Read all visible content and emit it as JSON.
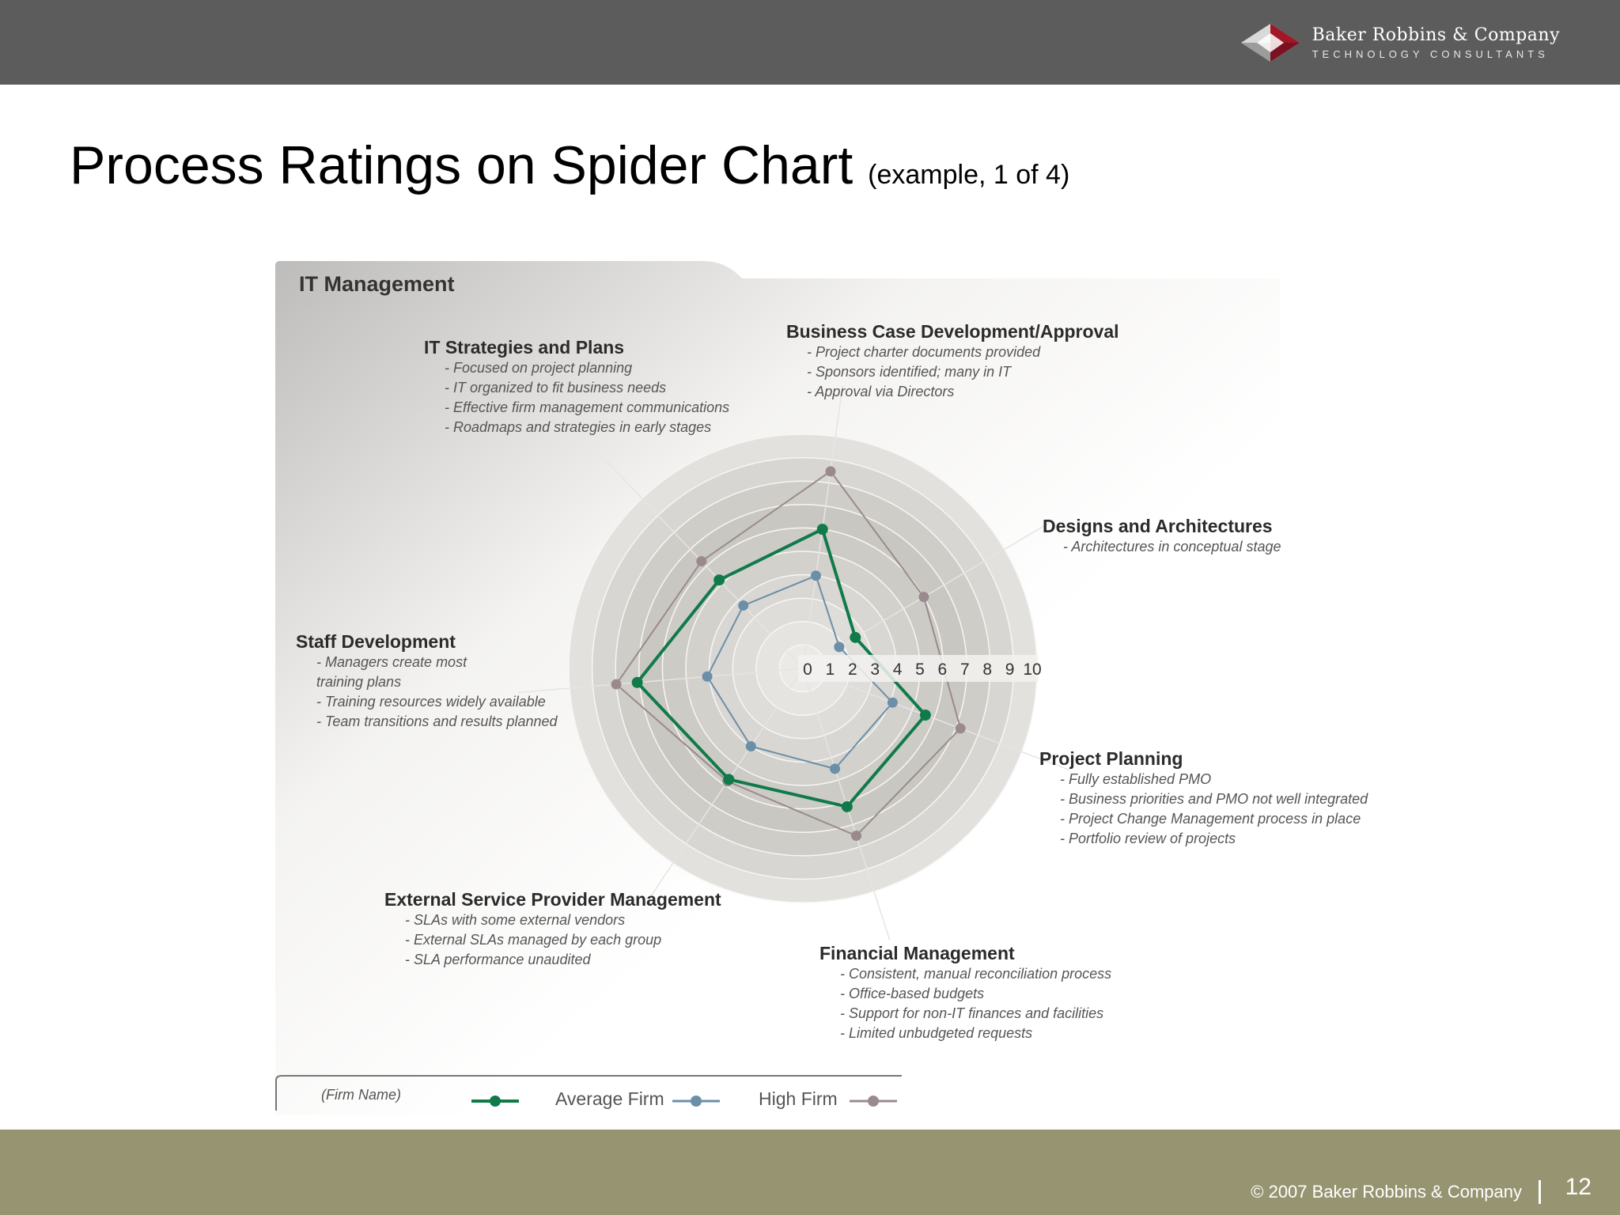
{
  "header": {
    "company_name": "Baker Robbins & Company",
    "company_tagline": "TECHNOLOGY CONSULTANTS"
  },
  "slide": {
    "title": "Process Ratings on Spider Chart",
    "subtitle": "(example, 1 of 4)"
  },
  "chart_data": {
    "type": "radar",
    "title": "IT Management",
    "scale_labels": [
      "0",
      "1",
      "2",
      "3",
      "4",
      "5",
      "6",
      "7",
      "8",
      "9",
      "10"
    ],
    "range": [
      0,
      10
    ],
    "axes": [
      {
        "name": "Business Case Development/Approval",
        "notes": [
          "- Project charter documents provided",
          "- Sponsors identified; many in IT",
          "- Approval via Directors"
        ]
      },
      {
        "name": "Designs and Architectures",
        "notes": [
          "- Architectures in conceptual  stage"
        ]
      },
      {
        "name": "Project Planning",
        "notes": [
          "- Fully established PMO",
          "- Business priorities and PMO not well integrated",
          "- Project Change Management process in place",
          "- Portfolio review of projects"
        ]
      },
      {
        "name": "Financial Management",
        "notes": [
          "- Consistent, manual reconciliation process",
          "- Office-based budgets",
          "- Support for non-IT finances and facilities",
          "- Limited unbudgeted requests"
        ]
      },
      {
        "name": "External Service Provider Management",
        "notes": [
          "- SLAs with some external vendors",
          "- External SLAs managed by each group",
          "- SLA performance unaudited"
        ]
      },
      {
        "name": "Staff Development",
        "notes": [
          "- Managers create most",
          "  training plans",
          "- Training resources widely available",
          "- Team transitions and results planned"
        ]
      },
      {
        "name": "IT Strategies and Plans",
        "notes": [
          "- Focused on project planning",
          "- IT organized to fit business needs",
          "- Effective firm management communications",
          "- Roadmaps and strategies in early stages"
        ]
      }
    ],
    "series": [
      {
        "name": "(Firm Name)",
        "color": "#117a4a",
        "values": [
          6.0,
          2.6,
          5.6,
          6.2,
          5.7,
          7.1,
          5.2
        ]
      },
      {
        "name": "Average Firm",
        "color": "#6b8fa8",
        "values": [
          4.0,
          1.8,
          4.1,
          4.5,
          4.0,
          4.1,
          3.7
        ]
      },
      {
        "name": "High Firm",
        "color": "#9a8a8e",
        "values": [
          8.5,
          6.0,
          7.2,
          7.5,
          5.8,
          8.0,
          6.3
        ]
      }
    ],
    "legend": {
      "firm_label": "(Firm Name)",
      "avg_label": "Average Firm",
      "high_label": "High Firm",
      "position": "bottom"
    }
  },
  "footer": {
    "copyright": "© 2007 Baker Robbins & Company",
    "page_number": "12"
  }
}
